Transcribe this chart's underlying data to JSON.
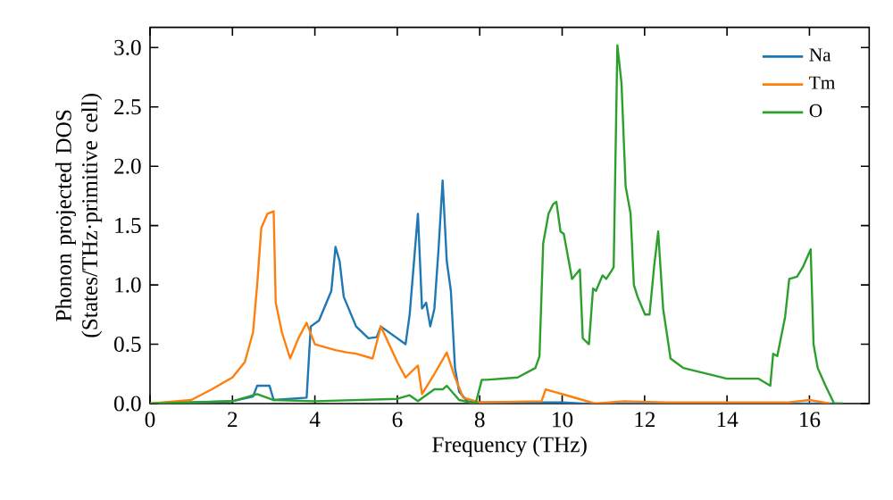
{
  "chart_data": {
    "type": "line",
    "xlabel": "Frequency (THz)",
    "ylabel": "Phonon projected DOS (States/THz·primitive cell)",
    "xlim": [
      0,
      17.45
    ],
    "ylim": [
      0,
      3.17
    ],
    "xticks": [
      0,
      2,
      4,
      6,
      8,
      10,
      12,
      14,
      16
    ],
    "yticks": [
      {
        "value": 0,
        "label": "0.0"
      },
      {
        "value": 0.5,
        "label": "0.5"
      },
      {
        "value": 1,
        "label": "1.0"
      },
      {
        "value": 1.5,
        "label": "1.5"
      },
      {
        "value": 2,
        "label": "2.0"
      },
      {
        "value": 2.5,
        "label": "2.5"
      },
      {
        "value": 3,
        "label": "3.0"
      }
    ],
    "legend": "top right",
    "series": [
      {
        "name": "Na",
        "color": "#1f77b4",
        "x": [
          0,
          1,
          2,
          2.5,
          2.6,
          2.9,
          3.0,
          3.8,
          3.9,
          4.1,
          4.4,
          4.5,
          4.6,
          4.7,
          5.0,
          5.3,
          5.5,
          5.6,
          6.0,
          6.2,
          6.3,
          6.5,
          6.6,
          6.7,
          6.8,
          6.9,
          7.0,
          7.1,
          7.2,
          7.3,
          7.4,
          7.5,
          7.7,
          8,
          10,
          10.5,
          16.8
        ],
        "values": [
          0,
          0.01,
          0.02,
          0.06,
          0.15,
          0.15,
          0.03,
          0.05,
          0.65,
          0.7,
          0.95,
          1.32,
          1.2,
          0.9,
          0.65,
          0.55,
          0.56,
          0.65,
          0.55,
          0.5,
          0.75,
          1.6,
          0.8,
          0.85,
          0.65,
          0.8,
          1.3,
          1.88,
          1.2,
          0.95,
          0.3,
          0.1,
          0.02,
          0.01,
          0.01,
          0,
          0
        ]
      },
      {
        "name": "Tm",
        "color": "#ff7f0e",
        "x": [
          0,
          1,
          1.5,
          2,
          2.3,
          2.5,
          2.6,
          2.7,
          2.85,
          3.0,
          3.05,
          3.2,
          3.4,
          3.6,
          3.8,
          4.0,
          4.5,
          4.8,
          5.0,
          5.4,
          5.6,
          5.8,
          6.0,
          6.2,
          6.5,
          6.6,
          6.9,
          7.2,
          7.4,
          7.6,
          8,
          9.5,
          9.6,
          10.2,
          10.8,
          11.5,
          12.5,
          15.5,
          16.0,
          16.5
        ],
        "values": [
          0,
          0.03,
          0.12,
          0.22,
          0.35,
          0.6,
          1.0,
          1.48,
          1.6,
          1.62,
          0.85,
          0.6,
          0.38,
          0.55,
          0.68,
          0.5,
          0.45,
          0.43,
          0.42,
          0.38,
          0.65,
          0.5,
          0.35,
          0.22,
          0.32,
          0.08,
          0.25,
          0.43,
          0.22,
          0.05,
          0.01,
          0.02,
          0.12,
          0.06,
          0,
          0.02,
          0.01,
          0.01,
          0.03,
          0
        ]
      },
      {
        "name": "O",
        "color": "#2ca02c",
        "x": [
          0,
          2,
          2.6,
          3.0,
          4,
          6,
          6.3,
          6.5,
          6.9,
          7.1,
          7.2,
          7.5,
          7.9,
          8.05,
          8.17,
          8.92,
          9.35,
          9.45,
          9.54,
          9.67,
          9.78,
          9.86,
          9.96,
          10.04,
          10.24,
          10.43,
          10.5,
          10.65,
          10.75,
          10.82,
          10.98,
          11.07,
          11.2,
          11.25,
          11.34,
          11.44,
          11.54,
          11.66,
          11.74,
          11.83,
          12.01,
          12.12,
          12.23,
          12.33,
          12.45,
          12.63,
          12.94,
          14,
          14.76,
          15.05,
          15.12,
          15.22,
          15.41,
          15.51,
          15.7,
          15.84,
          16.03,
          16.1,
          16.2,
          16.39,
          16.6,
          16.8
        ],
        "values": [
          0,
          0.02,
          0.08,
          0.03,
          0.02,
          0.04,
          0.07,
          0.02,
          0.12,
          0.12,
          0.15,
          0.03,
          0,
          0.2,
          0.2,
          0.22,
          0.3,
          0.4,
          1.35,
          1.6,
          1.68,
          1.7,
          1.45,
          1.43,
          1.05,
          1.13,
          0.55,
          0.5,
          0.97,
          0.95,
          1.08,
          1.05,
          1.12,
          1.15,
          3.02,
          2.7,
          1.83,
          1.6,
          1.0,
          0.9,
          0.75,
          0.75,
          1.15,
          1.45,
          0.8,
          0.38,
          0.3,
          0.21,
          0.21,
          0.15,
          0.42,
          0.4,
          0.73,
          1.05,
          1.07,
          1.15,
          1.3,
          0.5,
          0.3,
          0.15,
          0,
          0
        ]
      }
    ]
  }
}
